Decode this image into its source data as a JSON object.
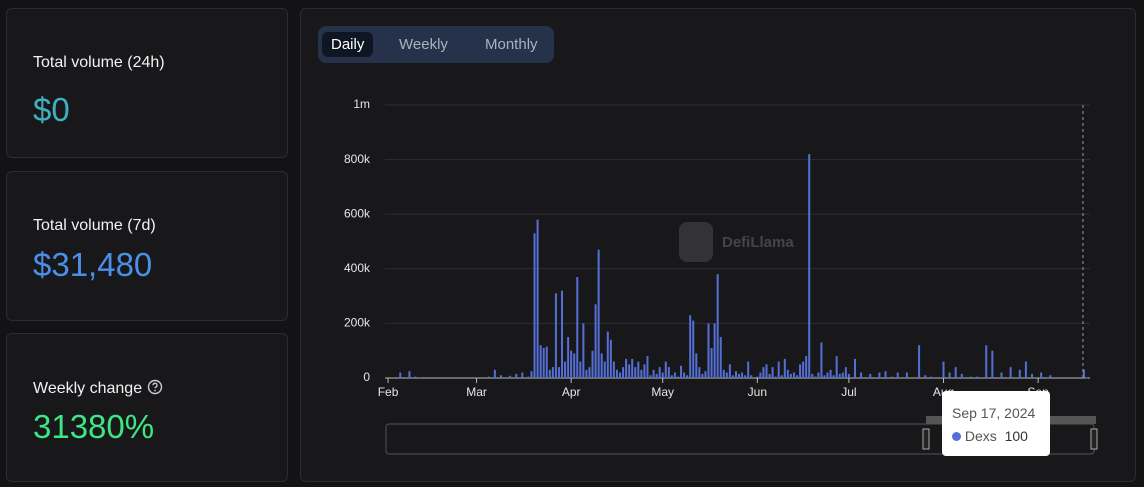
{
  "stats": [
    {
      "label": "Total volume (24h)",
      "value": "$0"
    },
    {
      "label": "Total volume (7d)",
      "value": "$31,480"
    },
    {
      "label": "Weekly change",
      "value": "31380%"
    }
  ],
  "tabs": [
    "Daily",
    "Weekly",
    "Monthly"
  ],
  "watermark": "DefiLlama",
  "chart_data": {
    "type": "bar",
    "grid": true,
    "xlim": [
      "2024-01-31",
      "2024-09-18"
    ],
    "xticks": [
      {
        "value": "2024-02-01",
        "label": "Feb"
      },
      {
        "value": "2024-03-01",
        "label": "Mar"
      },
      {
        "value": "2024-04-01",
        "label": "Apr"
      },
      {
        "value": "2024-05-01",
        "label": "May"
      },
      {
        "value": "2024-06-01",
        "label": "Jun"
      },
      {
        "value": "2024-07-01",
        "label": "Jul"
      },
      {
        "value": "2024-08-01",
        "label": "Aug"
      },
      {
        "value": "2024-09-01",
        "label": "Sep"
      }
    ],
    "ylim": [
      0,
      1000000
    ],
    "yticks": [
      0,
      {
        "value": 200000,
        "label": "200k"
      },
      {
        "value": 400000,
        "label": "400k"
      },
      {
        "value": 600000,
        "label": "600k"
      },
      {
        "value": 800000,
        "label": "800k"
      },
      {
        "value": 1000000,
        "label": "1m"
      }
    ],
    "x": [
      "2024-02-05",
      "2024-02-08",
      "2024-02-10",
      "2024-02-11",
      "2024-03-05",
      "2024-03-07",
      "2024-03-09",
      "2024-03-12",
      "2024-03-14",
      "2024-03-16",
      "2024-03-18",
      "2024-03-19",
      "2024-03-20",
      "2024-03-21",
      "2024-03-22",
      "2024-03-23",
      "2024-03-24",
      "2024-03-25",
      "2024-03-26",
      "2024-03-27",
      "2024-03-28",
      "2024-03-29",
      "2024-03-30",
      "2024-03-31",
      "2024-04-01",
      "2024-04-02",
      "2024-04-03",
      "2024-04-04",
      "2024-04-05",
      "2024-04-06",
      "2024-04-07",
      "2024-04-08",
      "2024-04-09",
      "2024-04-10",
      "2024-04-11",
      "2024-04-12",
      "2024-04-13",
      "2024-04-14",
      "2024-04-15",
      "2024-04-16",
      "2024-04-17",
      "2024-04-18",
      "2024-04-19",
      "2024-04-20",
      "2024-04-21",
      "2024-04-22",
      "2024-04-23",
      "2024-04-24",
      "2024-04-25",
      "2024-04-26",
      "2024-04-27",
      "2024-04-28",
      "2024-04-29",
      "2024-04-30",
      "2024-05-01",
      "2024-05-02",
      "2024-05-03",
      "2024-05-04",
      "2024-05-05",
      "2024-05-06",
      "2024-05-07",
      "2024-05-08",
      "2024-05-09",
      "2024-05-10",
      "2024-05-11",
      "2024-05-12",
      "2024-05-13",
      "2024-05-14",
      "2024-05-15",
      "2024-05-16",
      "2024-05-17",
      "2024-05-18",
      "2024-05-19",
      "2024-05-20",
      "2024-05-21",
      "2024-05-22",
      "2024-05-23",
      "2024-05-24",
      "2024-05-25",
      "2024-05-26",
      "2024-05-27",
      "2024-05-28",
      "2024-05-29",
      "2024-05-30",
      "2024-06-01",
      "2024-06-02",
      "2024-06-03",
      "2024-06-04",
      "2024-06-05",
      "2024-06-06",
      "2024-06-07",
      "2024-06-08",
      "2024-06-09",
      "2024-06-10",
      "2024-06-11",
      "2024-06-12",
      "2024-06-13",
      "2024-06-14",
      "2024-06-15",
      "2024-06-16",
      "2024-06-17",
      "2024-06-18",
      "2024-06-19",
      "2024-06-20",
      "2024-06-21",
      "2024-06-22",
      "2024-06-23",
      "2024-06-24",
      "2024-06-25",
      "2024-06-26",
      "2024-06-27",
      "2024-06-28",
      "2024-06-29",
      "2024-06-30",
      "2024-07-01",
      "2024-07-03",
      "2024-07-05",
      "2024-07-08",
      "2024-07-11",
      "2024-07-13",
      "2024-07-15",
      "2024-07-17",
      "2024-07-20",
      "2024-07-24",
      "2024-07-26",
      "2024-07-28",
      "2024-08-01",
      "2024-08-03",
      "2024-08-05",
      "2024-08-07",
      "2024-08-10",
      "2024-08-12",
      "2024-08-15",
      "2024-08-17",
      "2024-08-20",
      "2024-08-23",
      "2024-08-26",
      "2024-08-28",
      "2024-08-30",
      "2024-09-02",
      "2024-09-05",
      "2024-09-16",
      "2024-09-17"
    ],
    "series": [
      {
        "name": "Dexs",
        "color": "#5470d6",
        "values": [
          20000,
          25000,
          5000,
          3000,
          5000,
          30000,
          10000,
          8000,
          15000,
          20000,
          5000,
          25000,
          530000,
          580000,
          120000,
          110000,
          115000,
          30000,
          40000,
          310000,
          40000,
          320000,
          60000,
          150000,
          100000,
          90000,
          370000,
          60000,
          200000,
          30000,
          40000,
          100000,
          270000,
          470000,
          90000,
          60000,
          170000,
          140000,
          60000,
          30000,
          20000,
          40000,
          70000,
          50000,
          70000,
          40000,
          60000,
          30000,
          50000,
          80000,
          10000,
          30000,
          15000,
          40000,
          20000,
          60000,
          40000,
          10000,
          20000,
          5000,
          45000,
          20000,
          10000,
          230000,
          210000,
          90000,
          40000,
          15000,
          25000,
          200000,
          110000,
          200000,
          380000,
          150000,
          30000,
          20000,
          50000,
          10000,
          25000,
          15000,
          20000,
          10000,
          60000,
          10000,
          5000,
          20000,
          40000,
          50000,
          15000,
          40000,
          5000,
          60000,
          10000,
          70000,
          30000,
          15000,
          20000,
          10000,
          50000,
          60000,
          80000,
          820000,
          15000,
          5000,
          20000,
          130000,
          10000,
          20000,
          30000,
          10000,
          80000,
          15000,
          20000,
          40000,
          15000,
          70000,
          20000,
          15000,
          20000,
          25000,
          5000,
          20000,
          20000,
          120000,
          10000,
          5000,
          60000,
          20000,
          40000,
          15000,
          5000,
          5000,
          120000,
          100000,
          20000,
          40000,
          30000,
          60000,
          15000,
          20000,
          10000,
          31380,
          100
        ]
      }
    ],
    "tooltip": {
      "date": "Sep 17, 2024",
      "series": "Dexs",
      "value": 100
    }
  }
}
